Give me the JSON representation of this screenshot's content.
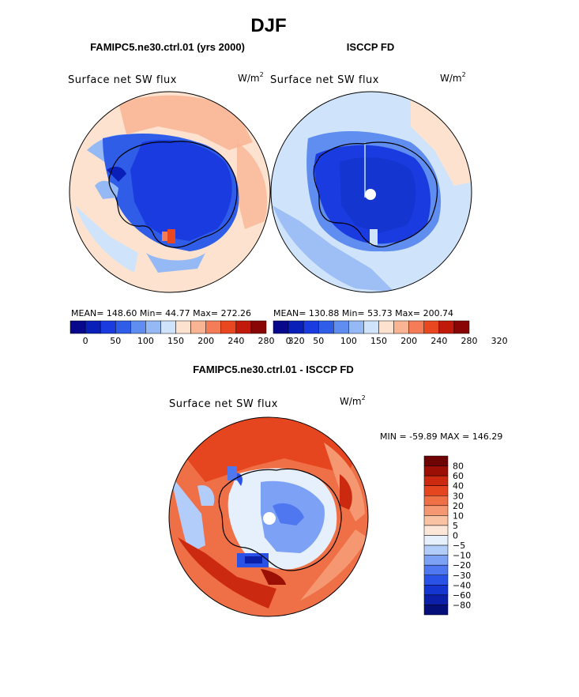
{
  "figure": {
    "season": "DJF",
    "colors": {
      "scale12": [
        "#08088c",
        "#0a1fb8",
        "#1a3be0",
        "#2f5de8",
        "#5f8df0",
        "#95b9f5",
        "#cfe3fb",
        "#fde3cf",
        "#f9b494",
        "#f47d58",
        "#e8471f",
        "#c11a0a",
        "#8a0606"
      ],
      "diff15": [
        "#050f7a",
        "#0b1fa8",
        "#1535d1",
        "#2a52e6",
        "#4f78f0",
        "#7da2f5",
        "#b3cdfb",
        "#e6effc",
        "#fce6d8",
        "#f9c2a3",
        "#f59872",
        "#ef6f46",
        "#e5461f",
        "#cb2a10",
        "#9c0f05",
        "#6d0303"
      ]
    },
    "panels": [
      {
        "id": "model",
        "heading": "FAMIPC5.ne30.ctrl.01 (yrs 2000)",
        "variable": "Surface net SW flux",
        "units_base": "W/m",
        "units_exp": "2",
        "stats": "MEAN= 148.60  Min=  44.77  Max= 272.26",
        "ticks": [
          "0",
          "50",
          "100",
          "150",
          "200",
          "240",
          "280",
          "320"
        ]
      },
      {
        "id": "obs",
        "heading": "ISCCP FD",
        "variable": "Surface net SW flux",
        "units_base": "W/m",
        "units_exp": "2",
        "stats": "MEAN= 130.88  Min=  53.73  Max= 200.74",
        "ticks": [
          "0",
          "50",
          "100",
          "150",
          "200",
          "240",
          "280",
          "320"
        ]
      }
    ],
    "diff": {
      "heading": "FAMIPC5.ne30.ctrl.01 - ISCCP FD",
      "variable": "Surface net SW flux",
      "units_base": "W/m",
      "units_exp": "2",
      "stats": "MIN = -59.89 MAX = 146.29",
      "legend_labels": [
        "80",
        "60",
        "40",
        "30",
        "20",
        "10",
        "5",
        "0",
        "-5",
        "-10",
        "-20",
        "-30",
        "-40",
        "-60",
        "-80"
      ]
    }
  },
  "chart_data": [
    {
      "type": "heatmap",
      "title": "FAMIPC5.ne30.ctrl.01 (yrs 2000)",
      "variable": "Surface net SW flux",
      "units": "W/m2",
      "projection": "south polar stereographic",
      "levels": [
        0,
        25,
        50,
        75,
        100,
        125,
        150,
        175,
        200,
        220,
        240,
        260,
        280,
        300,
        320
      ],
      "colorbar_ticks": [
        0,
        50,
        100,
        150,
        200,
        240,
        280,
        320
      ],
      "mean": 148.6,
      "min": 44.77,
      "max": 272.26
    },
    {
      "type": "heatmap",
      "title": "ISCCP FD",
      "variable": "Surface net SW flux",
      "units": "W/m2",
      "projection": "south polar stereographic",
      "levels": [
        0,
        25,
        50,
        75,
        100,
        125,
        150,
        175,
        200,
        220,
        240,
        260,
        280,
        300,
        320
      ],
      "colorbar_ticks": [
        0,
        50,
        100,
        150,
        200,
        240,
        280,
        320
      ],
      "mean": 130.88,
      "min": 53.73,
      "max": 200.74
    },
    {
      "type": "heatmap",
      "title": "FAMIPC5.ne30.ctrl.01 - ISCCP FD",
      "variable": "Surface net SW flux",
      "units": "W/m2",
      "projection": "south polar stereographic",
      "levels": [
        -80,
        -60,
        -40,
        -30,
        -20,
        -10,
        -5,
        0,
        5,
        10,
        20,
        30,
        40,
        60,
        80
      ],
      "min": -59.89,
      "max": 146.29
    }
  ]
}
